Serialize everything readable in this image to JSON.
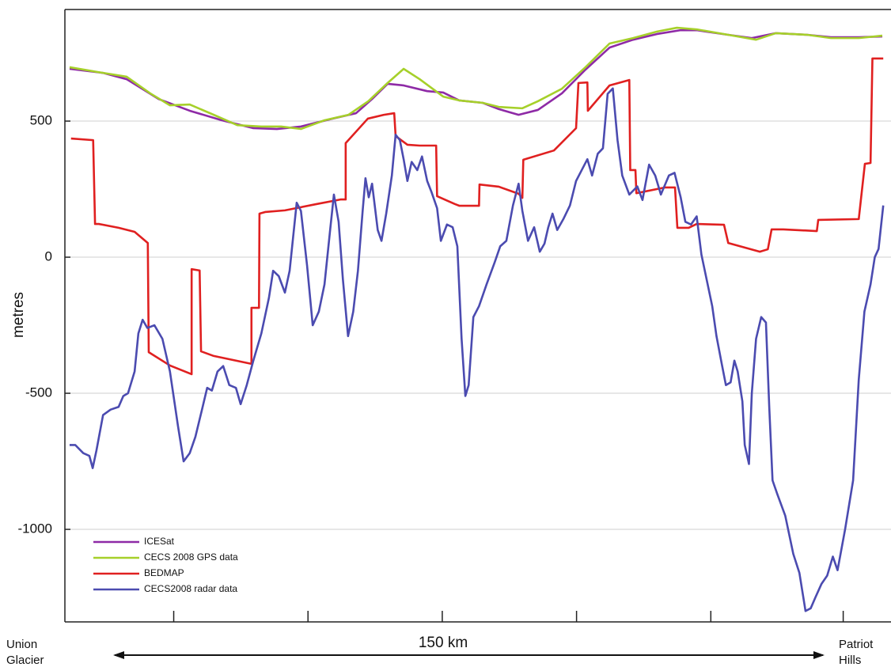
{
  "chart_data": {
    "type": "line",
    "y_label": "metres",
    "start_label": [
      "Union",
      "Glacier"
    ],
    "end_label": [
      "Patriot",
      "Hills"
    ],
    "distance_label": "150 km",
    "xlim": [
      0,
      174
    ],
    "xticks": [
      23.1,
      51.6,
      80.1,
      108.6,
      137.1,
      165.2
    ],
    "ylim": [
      -1340,
      910
    ],
    "yticks": [
      -1000,
      -500,
      0,
      500
    ],
    "grid": true,
    "legend": "lower left",
    "series": [
      {
        "name": "ICESat",
        "color": "#8e2aa6",
        "x": [
          1.0,
          8.1,
          13.1,
          19.9,
          26.5,
          33.3,
          40.0,
          45.0,
          50.1,
          56.8,
          61.8,
          65.2,
          68.5,
          71.9,
          76.9,
          80.3,
          83.7,
          88.7,
          92.1,
          96.3,
          100.4,
          105.5,
          110.5,
          115.6,
          120.6,
          125.7,
          130.7,
          134.1,
          140.8,
          145.8,
          150.9,
          157.6,
          162.6,
          168.5,
          173.5
        ],
        "values": [
          692,
          677,
          654,
          581,
          538,
          503,
          474,
          471,
          480,
          509,
          529,
          581,
          637,
          631,
          610,
          605,
          576,
          567,
          544,
          523,
          541,
          602,
          689,
          770,
          799,
          820,
          834,
          834,
          817,
          805,
          823,
          817,
          808,
          808,
          811
        ]
      },
      {
        "name": "CECS 2008 GPS data",
        "color": "#a6d02a",
        "x": [
          1.0,
          8.1,
          13.1,
          18.1,
          22.3,
          26.5,
          31.6,
          36.6,
          41.7,
          45.9,
          50.1,
          55.1,
          60.2,
          64.4,
          68.5,
          71.9,
          75.3,
          80.3,
          83.7,
          88.7,
          92.1,
          97.1,
          100.4,
          105.5,
          110.5,
          115.6,
          120.6,
          125.7,
          129.9,
          134.1,
          140.8,
          146.7,
          150.9,
          157.6,
          162.6,
          168.5,
          173.5
        ],
        "values": [
          698,
          677,
          663,
          602,
          558,
          561,
          523,
          485,
          480,
          480,
          471,
          503,
          523,
          573,
          640,
          692,
          654,
          590,
          576,
          567,
          552,
          547,
          573,
          619,
          698,
          785,
          805,
          829,
          843,
          837,
          817,
          799,
          823,
          817,
          805,
          805,
          814
        ]
      },
      {
        "name": "BEDMAP",
        "color": "#e02020",
        "x": [
          1.3,
          6.0,
          6.4,
          7.2,
          11.4,
          14.8,
          17.6,
          17.8,
          22.3,
          26.9,
          26.9,
          28.6,
          28.9,
          31.6,
          39.6,
          39.6,
          41.2,
          41.3,
          42.5,
          46.7,
          53.4,
          58.5,
          59.6,
          59.6,
          64.3,
          67.7,
          69.9,
          70.2,
          72.7,
          75.3,
          78.8,
          79.0,
          82.8,
          83.7,
          87.9,
          88.0,
          92.1,
          96.3,
          97.1,
          97.3,
          103.8,
          108.5,
          109.0,
          110.9,
          111.0,
          115.6,
          119.8,
          120.0,
          121.1,
          121.3,
          127.3,
          129.5,
          130.0,
          132.4,
          134.1,
          139.9,
          140.8,
          147.5,
          149.2,
          150.0,
          152.5,
          159.6,
          159.9,
          168.5,
          169.8,
          171.0,
          171.4,
          173.7
        ],
        "values": [
          436,
          430,
          122,
          122,
          108,
          93,
          52,
          -349,
          -398,
          -430,
          -44,
          -49,
          -346,
          -363,
          -392,
          -186,
          -186,
          160,
          166,
          172,
          195,
          212,
          212,
          419,
          509,
          523,
          529,
          445,
          413,
          410,
          410,
          224,
          195,
          189,
          189,
          267,
          259,
          233,
          218,
          358,
          392,
          474,
          640,
          642,
          538,
          631,
          651,
          320,
          320,
          235,
          256,
          256,
          108,
          108,
          122,
          119,
          52,
          20,
          29,
          102,
          102,
          96,
          137,
          140,
          343,
          346,
          730,
          730
        ]
      },
      {
        "name": "CECS2008 radar data",
        "color": "#4b4bb0",
        "x": [
          1.0,
          2.2,
          3.9,
          5.2,
          5.9,
          6.7,
          8.1,
          9.7,
          11.4,
          12.4,
          13.4,
          14.8,
          15.6,
          16.5,
          17.5,
          19.0,
          20.7,
          22.3,
          24.0,
          25.2,
          26.5,
          27.7,
          29.1,
          30.2,
          31.2,
          32.4,
          33.6,
          34.9,
          36.3,
          37.3,
          38.6,
          40.0,
          41.7,
          43.3,
          44.2,
          45.4,
          46.7,
          47.7,
          49.2,
          50.1,
          51.4,
          52.6,
          53.9,
          55.1,
          56.3,
          57.1,
          58.1,
          59.0,
          60.1,
          61.2,
          62.2,
          63.2,
          63.8,
          64.5,
          65.2,
          66.4,
          67.2,
          68.2,
          69.4,
          70.2,
          71.1,
          71.9,
          72.7,
          73.6,
          74.8,
          75.8,
          76.9,
          77.8,
          79.0,
          79.8,
          81.1,
          82.3,
          83.3,
          84.2,
          85.0,
          85.7,
          86.7,
          87.9,
          89.5,
          91.2,
          92.4,
          93.7,
          95.1,
          96.3,
          97.1,
          98.3,
          99.6,
          100.8,
          101.8,
          102.6,
          103.5,
          104.5,
          105.8,
          107.2,
          108.5,
          109.7,
          110.9,
          111.9,
          113.1,
          114.2,
          115.2,
          116.3,
          117.3,
          118.3,
          119.8,
          121.5,
          122.6,
          124.0,
          125.3,
          126.5,
          128.2,
          129.4,
          130.7,
          131.7,
          132.9,
          134.1,
          135.1,
          137.4,
          138.3,
          139.4,
          140.3,
          141.3,
          142.1,
          142.8,
          143.8,
          144.3,
          145.2,
          145.8,
          146.7,
          147.8,
          148.8,
          149.5,
          150.2,
          151.2,
          152.9,
          154.6,
          155.9,
          157.2,
          158.3,
          159.3,
          160.6,
          161.8,
          163.0,
          164.0,
          165.6,
          167.3,
          168.5,
          169.7,
          171.0,
          171.9,
          172.7,
          173.7
        ],
        "values": [
          -690,
          -690,
          -720,
          -730,
          -775,
          -710,
          -580,
          -560,
          -550,
          -510,
          -500,
          -420,
          -280,
          -230,
          -260,
          -250,
          -300,
          -420,
          -620,
          -750,
          -720,
          -660,
          -560,
          -480,
          -490,
          -420,
          -400,
          -470,
          -480,
          -540,
          -470,
          -380,
          -280,
          -150,
          -50,
          -70,
          -130,
          -50,
          200,
          170,
          -30,
          -250,
          -200,
          -100,
          100,
          230,
          130,
          -80,
          -290,
          -200,
          -50,
          170,
          290,
          220,
          270,
          100,
          60,
          160,
          300,
          450,
          430,
          360,
          280,
          350,
          320,
          370,
          280,
          240,
          180,
          60,
          120,
          110,
          40,
          -300,
          -510,
          -470,
          -220,
          -180,
          -100,
          -20,
          40,
          60,
          190,
          270,
          170,
          60,
          110,
          20,
          50,
          110,
          160,
          100,
          140,
          190,
          280,
          320,
          360,
          300,
          380,
          400,
          600,
          620,
          430,
          300,
          230,
          260,
          210,
          340,
          300,
          230,
          300,
          310,
          220,
          130,
          120,
          150,
          10,
          -180,
          -290,
          -390,
          -470,
          -460,
          -380,
          -420,
          -530,
          -690,
          -760,
          -500,
          -300,
          -220,
          -240,
          -550,
          -820,
          -870,
          -950,
          -1090,
          -1160,
          -1300,
          -1290,
          -1250,
          -1200,
          -1170,
          -1100,
          -1150,
          -1000,
          -820,
          -450,
          -200,
          -100,
          0,
          30,
          190
        ]
      }
    ]
  }
}
